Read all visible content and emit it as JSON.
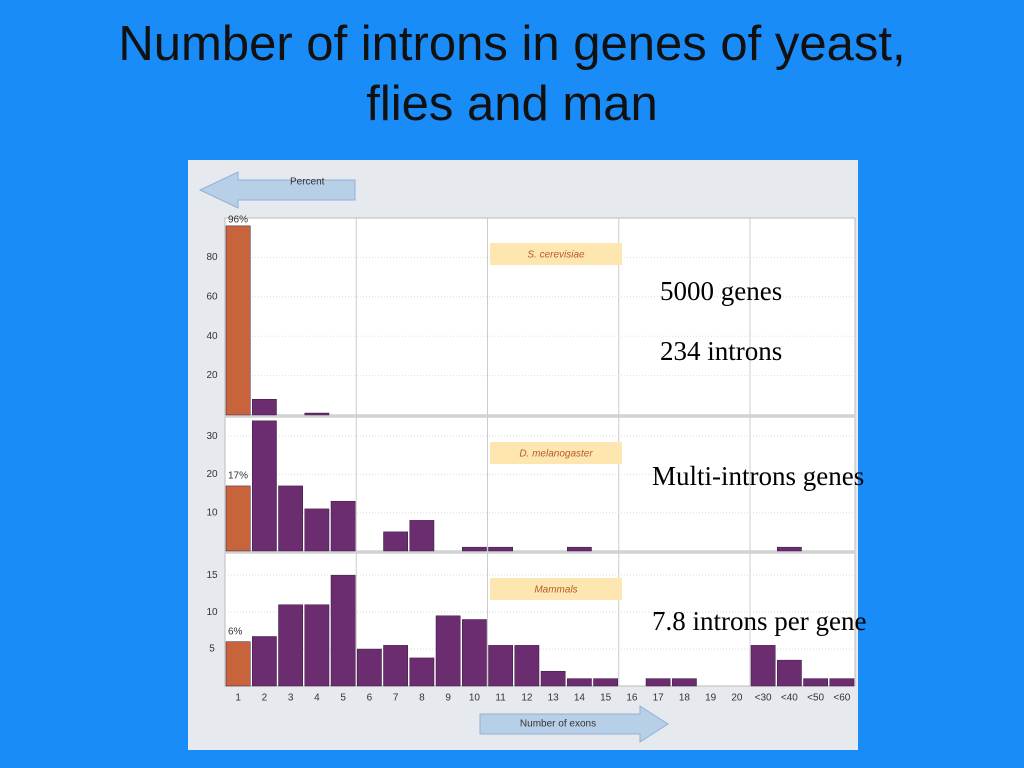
{
  "slide": {
    "title": "Number of introns in genes of yeast, flies and man",
    "notes": [
      "5000 genes",
      "234 introns",
      "Multi-introns genes",
      "7.8 introns per gene"
    ]
  },
  "chart_data": {
    "type": "bar",
    "y_label": "Percent",
    "x_label": "Number of exons",
    "categories": [
      "1",
      "2",
      "3",
      "4",
      "5",
      "6",
      "7",
      "8",
      "9",
      "10",
      "11",
      "12",
      "13",
      "14",
      "15",
      "16",
      "17",
      "18",
      "19",
      "20",
      "<30",
      "<40",
      "<50",
      "<60"
    ],
    "color": "#6b2d6f",
    "first_color": "#c8643c",
    "panels": [
      {
        "title": "S. cerevisiae",
        "ylim": [
          0,
          100
        ],
        "yticks": [
          20,
          40,
          60,
          80
        ],
        "values": [
          96,
          8,
          0,
          1,
          0,
          0,
          0,
          0,
          0,
          0,
          0,
          0,
          0,
          0,
          0,
          0,
          0,
          0,
          0,
          0,
          0,
          0,
          0,
          0
        ],
        "value_labels": [
          "96%",
          null,
          null,
          null,
          null,
          null,
          null,
          null,
          null,
          null,
          null,
          null,
          null,
          null,
          null,
          null,
          null,
          null,
          null,
          null,
          null,
          null,
          null,
          null
        ]
      },
      {
        "title": "D. melanogaster",
        "ylim": [
          0,
          35
        ],
        "yticks": [
          10,
          20,
          30
        ],
        "values": [
          17,
          34,
          17,
          11,
          13,
          0,
          5,
          8,
          0,
          1,
          1,
          0,
          0,
          1,
          0,
          0,
          0,
          0,
          0,
          0,
          0,
          1,
          0,
          0
        ],
        "value_labels": [
          "17%",
          null,
          null,
          null,
          null,
          null,
          null,
          null,
          null,
          null,
          null,
          null,
          null,
          null,
          null,
          null,
          null,
          null,
          null,
          null,
          null,
          null,
          null,
          null
        ]
      },
      {
        "title": "Mammals",
        "ylim": [
          0,
          18
        ],
        "yticks": [
          5,
          10,
          15
        ],
        "values": [
          6,
          6.7,
          11,
          11,
          15,
          5,
          5.5,
          3.8,
          9.5,
          9,
          5.5,
          5.5,
          2,
          1,
          1,
          0,
          1,
          1,
          0,
          0,
          5.5,
          3.5,
          1,
          1
        ],
        "value_labels": [
          "6%",
          null,
          null,
          null,
          null,
          null,
          null,
          null,
          null,
          null,
          null,
          null,
          null,
          null,
          null,
          null,
          null,
          null,
          null,
          null,
          null,
          null,
          null,
          null
        ]
      }
    ]
  }
}
